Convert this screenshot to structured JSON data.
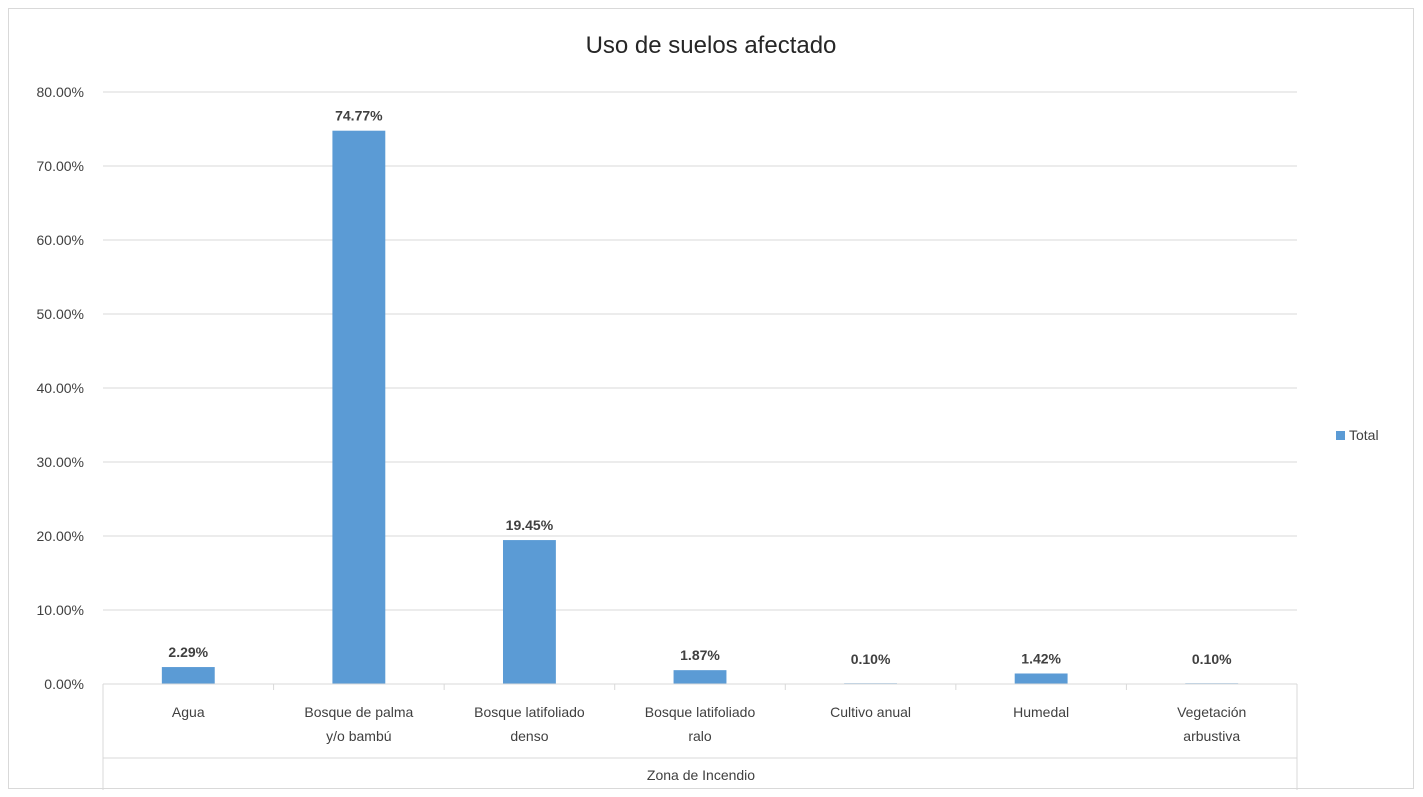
{
  "chart_data": {
    "type": "bar",
    "title": "Uso de suelos afectado",
    "xlabel": "Zona de Incendio",
    "ylabel": "",
    "ylim": [
      0,
      80
    ],
    "yticks": [
      "0.00%",
      "10.00%",
      "20.00%",
      "30.00%",
      "40.00%",
      "50.00%",
      "60.00%",
      "70.00%",
      "80.00%"
    ],
    "grid": true,
    "legend_position": "right",
    "categories": [
      [
        "Agua"
      ],
      [
        "Bosque de palma",
        "y/o bambú"
      ],
      [
        "Bosque latifoliado",
        "denso"
      ],
      [
        "Bosque latifoliado",
        "ralo"
      ],
      [
        "Cultivo anual"
      ],
      [
        "Humedal"
      ],
      [
        "Vegetación",
        "arbustiva"
      ]
    ],
    "series": [
      {
        "name": "Total",
        "color": "#5b9bd5",
        "values": [
          2.29,
          74.77,
          19.45,
          1.87,
          0.1,
          1.42,
          0.1
        ],
        "labels": [
          "2.29%",
          "74.77%",
          "19.45%",
          "1.87%",
          "0.10%",
          "1.42%",
          "0.10%"
        ]
      }
    ],
    "gridline_color": "#d9d9d9",
    "text_color": "#404040"
  }
}
